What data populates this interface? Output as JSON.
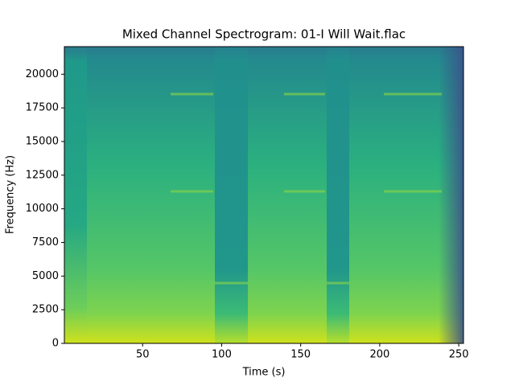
{
  "chart_data": {
    "type": "spectrogram",
    "title": "Mixed Channel Spectrogram: 01-I Will Wait.flac",
    "x_label": "Time (s)",
    "y_label": "Frequency (Hz)",
    "xlim": [
      0.5,
      253
    ],
    "ylim": [
      0,
      22050
    ],
    "xticks": [
      50,
      100,
      150,
      200,
      250
    ],
    "yticks": [
      0,
      2500,
      5000,
      7500,
      10000,
      12500,
      15000,
      17500,
      20000
    ]
  }
}
